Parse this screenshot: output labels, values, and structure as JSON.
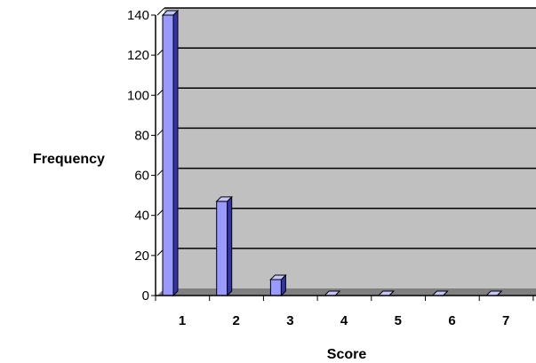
{
  "chart_data": {
    "type": "bar",
    "title": "",
    "xlabel": "Score",
    "ylabel": "Frequency",
    "categories": [
      "1",
      "2",
      "3",
      "4",
      "5",
      "6",
      "7"
    ],
    "values": [
      140,
      47,
      8,
      0,
      0,
      0,
      0
    ],
    "ylim": [
      0,
      140
    ],
    "yticks": [
      "0",
      "20",
      "40",
      "60",
      "80",
      "100",
      "120",
      "140"
    ],
    "grid": true,
    "legend": "none",
    "style": "3d-column"
  },
  "colors": {
    "plot_background": "#c0c0c0",
    "bar_front": "#9999ff",
    "bar_side": "#3333aa",
    "bar_top": "#c6c6ff",
    "gridline": "#000000",
    "floor": "#808080"
  }
}
